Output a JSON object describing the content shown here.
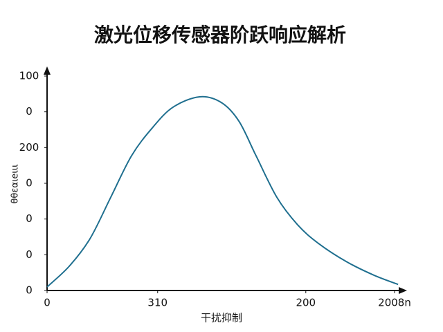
{
  "chart_data": {
    "type": "line",
    "title": "激光位移传感器阶跃响应解析",
    "x_label": "干扰抑制",
    "y_label": "θθεαιeιιι",
    "x": [
      0,
      6.2,
      12.0,
      17.8,
      23.6,
      29.4,
      35.2,
      42.6,
      48.7,
      53.6,
      58.4,
      64.2,
      70.0,
      75.8,
      83.6,
      91.3,
      98.1
    ],
    "series": [
      {
        "color": "#1f6f8f",
        "values": [
          0.1,
          0.68,
          1.45,
          2.61,
          3.77,
          4.55,
          5.13,
          5.42,
          5.26,
          4.74,
          3.77,
          2.61,
          1.84,
          1.32,
          0.81,
          0.43,
          0.17
        ]
      }
    ],
    "xlim": [
      0,
      100
    ],
    "ylim": [
      0,
      6
    ],
    "xticks": [
      {
        "value": 0,
        "label": "0"
      },
      {
        "value": 30.9,
        "label": "310"
      },
      {
        "value": 72.3,
        "label": "200"
      },
      {
        "value": 97.1,
        "label": "2008n"
      }
    ],
    "yticks": [
      0,
      {
        "value": 1,
        "label": "0"
      },
      {
        "value": 2,
        "label": "0"
      },
      {
        "value": 3,
        "label": "0"
      },
      {
        "value": 4,
        "label": "200"
      },
      {
        "value": 5,
        "label": "0"
      },
      {
        "value": 6,
        "label": "100"
      }
    ]
  }
}
